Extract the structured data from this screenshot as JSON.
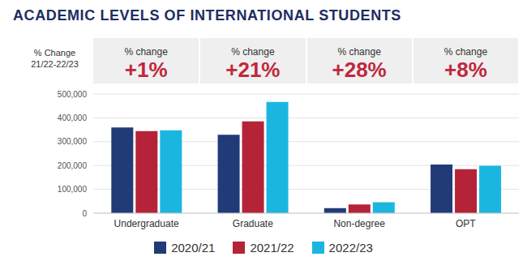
{
  "chart_data": {
    "type": "bar",
    "title": "ACADEMIC LEVELS OF INTERNATIONAL STUDENTS",
    "annotations": {
      "header": [
        "% Change",
        "21/22-22/23"
      ],
      "caption": "% change",
      "labels": [
        "+1%",
        "+21%",
        "+28%",
        "+8%"
      ]
    },
    "categories": [
      "Undergraduate",
      "Graduate",
      "Non-degree",
      "OPT"
    ],
    "series": [
      {
        "name": "2020/21",
        "color": "#213a78",
        "values": [
          359787,
          329272,
          21151,
          203885
        ]
      },
      {
        "name": "2021/22",
        "color": "#b42337",
        "values": [
          344532,
          385097,
          36205,
          184759
        ]
      },
      {
        "name": "2022/23",
        "color": "#1bb6e0",
        "values": [
          347602,
          467027,
          46341,
          199000
        ]
      }
    ],
    "ylim": [
      0,
      500000
    ],
    "yticks": [
      0,
      {
        "value": 100000,
        "label": "100,000"
      },
      {
        "value": 200000,
        "label": "200,000"
      },
      {
        "value": 300000,
        "label": "300,000"
      },
      {
        "value": 400000,
        "label": "400,000"
      },
      {
        "value": 500000,
        "label": "500,000"
      }
    ],
    "grid": true,
    "legend": "bottom"
  }
}
